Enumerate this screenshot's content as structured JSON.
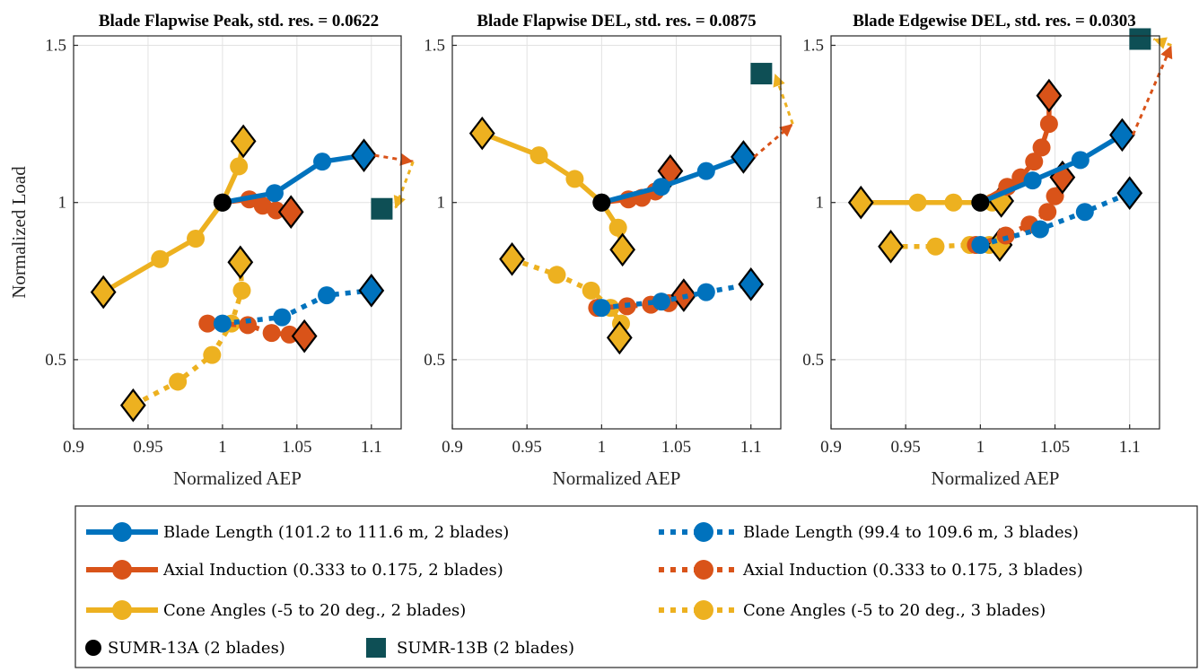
{
  "chart_data": [
    {
      "type": "line",
      "title": "Blade Flapwise Peak, std. res. = 0.0622",
      "xlabel": "Normalized AEP",
      "ylabel": "Normalized Load",
      "xlim": [
        0.9,
        1.12
      ],
      "ylim": [
        0.28,
        1.53
      ],
      "xticks": [
        "0.9",
        "0.95",
        "1",
        "1.05",
        "1.1"
      ],
      "yticks": [
        "0.5",
        "1",
        "1.5"
      ],
      "grid": true,
      "series": [
        {
          "key": "bl2",
          "points": [
            [
              1.0,
              1.0
            ],
            [
              1.035,
              1.03
            ],
            [
              1.067,
              1.13
            ],
            [
              1.095,
              1.15
            ]
          ]
        },
        {
          "key": "ai2",
          "points": [
            [
              1.0,
              1.0
            ],
            [
              1.018,
              1.01
            ],
            [
              1.027,
              0.99
            ],
            [
              1.036,
              0.975
            ],
            [
              1.046,
              0.97
            ]
          ]
        },
        {
          "key": "cone2",
          "points": [
            [
              0.92,
              0.715
            ],
            [
              0.958,
              0.82
            ],
            [
              0.982,
              0.885
            ],
            [
              1.0,
              1.0
            ],
            [
              1.011,
              1.115
            ],
            [
              1.014,
              1.195
            ]
          ]
        },
        {
          "key": "bl3",
          "points": [
            [
              1.0,
              0.615
            ],
            [
              1.04,
              0.635
            ],
            [
              1.07,
              0.705
            ],
            [
              1.1,
              0.72
            ]
          ]
        },
        {
          "key": "ai3",
          "points": [
            [
              0.99,
              0.615
            ],
            [
              1.017,
              0.61
            ],
            [
              1.033,
              0.585
            ],
            [
              1.045,
              0.58
            ],
            [
              1.055,
              0.575
            ]
          ]
        },
        {
          "key": "cone3",
          "points": [
            [
              0.94,
              0.355
            ],
            [
              0.97,
              0.43
            ],
            [
              0.993,
              0.515
            ],
            [
              1.006,
              0.615
            ],
            [
              1.013,
              0.72
            ],
            [
              1.012,
              0.81
            ]
          ]
        }
      ],
      "sumr13a": [
        1.0,
        1.0
      ],
      "sumr13b": [
        1.107,
        0.98
      ],
      "arrow_ends": [
        [
          1.128,
          1.13
        ],
        [
          1.11,
          0.98
        ]
      ]
    },
    {
      "type": "line",
      "title": "Blade Flapwise DEL, std. res. = 0.0875",
      "xlabel": "Normalized AEP",
      "ylabel": "",
      "xlim": [
        0.9,
        1.12
      ],
      "ylim": [
        0.28,
        1.53
      ],
      "xticks": [
        "0.9",
        "0.95",
        "1",
        "1.05",
        "1.1"
      ],
      "yticks": [
        "0.5",
        "1",
        "1.5"
      ],
      "grid": true,
      "series": [
        {
          "key": "bl2",
          "points": [
            [
              1.0,
              1.0
            ],
            [
              1.04,
              1.05
            ],
            [
              1.07,
              1.1
            ],
            [
              1.095,
              1.145
            ]
          ]
        },
        {
          "key": "ai2",
          "points": [
            [
              1.0,
              1.0
            ],
            [
              1.018,
              1.01
            ],
            [
              1.027,
              1.015
            ],
            [
              1.036,
              1.035
            ],
            [
              1.046,
              1.1
            ]
          ]
        },
        {
          "key": "cone2",
          "points": [
            [
              0.92,
              1.22
            ],
            [
              0.958,
              1.15
            ],
            [
              0.982,
              1.075
            ],
            [
              1.0,
              1.0
            ],
            [
              1.011,
              0.92
            ],
            [
              1.014,
              0.85
            ]
          ]
        },
        {
          "key": "bl3",
          "points": [
            [
              1.0,
              0.665
            ],
            [
              1.04,
              0.685
            ],
            [
              1.07,
              0.715
            ],
            [
              1.1,
              0.74
            ]
          ]
        },
        {
          "key": "ai3",
          "points": [
            [
              0.997,
              0.665
            ],
            [
              1.017,
              0.67
            ],
            [
              1.033,
              0.675
            ],
            [
              1.045,
              0.68
            ],
            [
              1.055,
              0.705
            ]
          ]
        },
        {
          "key": "cone3",
          "points": [
            [
              0.94,
              0.82
            ],
            [
              0.97,
              0.77
            ],
            [
              0.993,
              0.72
            ],
            [
              1.006,
              0.665
            ],
            [
              1.013,
              0.615
            ],
            [
              1.012,
              0.57
            ]
          ]
        }
      ],
      "sumr13a": [
        1.0,
        1.0
      ],
      "sumr13b": [
        1.107,
        1.41
      ],
      "arrow_ends": [
        [
          1.128,
          1.25
        ],
        [
          1.11,
          1.41
        ]
      ]
    },
    {
      "type": "line",
      "title": "Blade Edgewise DEL, std. res. = 0.0303",
      "xlabel": "Normalized AEP",
      "ylabel": "",
      "xlim": [
        0.9,
        1.12
      ],
      "ylim": [
        0.28,
        1.53
      ],
      "xticks": [
        "0.9",
        "0.95",
        "1",
        "1.05",
        "1.1"
      ],
      "yticks": [
        "0.5",
        "1",
        "1.5"
      ],
      "grid": true,
      "series": [
        {
          "key": "bl2",
          "points": [
            [
              1.0,
              1.0
            ],
            [
              1.035,
              1.07
            ],
            [
              1.067,
              1.135
            ],
            [
              1.095,
              1.215
            ]
          ]
        },
        {
          "key": "ai2",
          "points": [
            [
              1.0,
              1.0
            ],
            [
              1.018,
              1.05
            ],
            [
              1.027,
              1.08
            ],
            [
              1.036,
              1.13
            ],
            [
              1.041,
              1.175
            ],
            [
              1.046,
              1.25
            ],
            [
              1.046,
              1.34
            ]
          ]
        },
        {
          "key": "cone2",
          "points": [
            [
              0.92,
              1.0
            ],
            [
              0.958,
              1.0
            ],
            [
              0.982,
              1.0
            ],
            [
              1.0,
              1.0
            ],
            [
              1.008,
              1.0
            ],
            [
              1.014,
              1.005
            ]
          ]
        },
        {
          "key": "bl3",
          "points": [
            [
              1.0,
              0.865
            ],
            [
              1.04,
              0.915
            ],
            [
              1.07,
              0.97
            ],
            [
              1.1,
              1.03
            ]
          ]
        },
        {
          "key": "ai3",
          "points": [
            [
              0.997,
              0.865
            ],
            [
              1.017,
              0.895
            ],
            [
              1.033,
              0.93
            ],
            [
              1.045,
              0.97
            ],
            [
              1.05,
              1.02
            ],
            [
              1.055,
              1.08
            ]
          ]
        },
        {
          "key": "cone3",
          "points": [
            [
              0.94,
              0.86
            ],
            [
              0.97,
              0.86
            ],
            [
              0.993,
              0.865
            ],
            [
              1.006,
              0.865
            ],
            [
              1.013,
              0.865
            ]
          ]
        }
      ],
      "sumr13a": [
        1.0,
        1.0
      ],
      "sumr13b": [
        1.107,
        1.52
      ],
      "arrow_ends": [
        [
          1.128,
          1.5
        ],
        [
          1.11,
          1.52
        ]
      ]
    }
  ],
  "legend": {
    "bl2": "Blade Length (101.2 to 111.6 m, 2 blades)",
    "bl3": "Blade Length (99.4 to 109.6 m, 3 blades)",
    "ai2": "Axial Induction (0.333 to 0.175, 2 blades)",
    "ai3": "Axial Induction (0.333 to 0.175, 3 blades)",
    "cone2": "Cone Angles (-5 to 20 deg., 2 blades)",
    "cone3": "Cone Angles (-5 to 20 deg., 3 blades)",
    "sumr13a": "SUMR-13A (2 blades)",
    "sumr13b": "SUMR-13B (2 blades)"
  },
  "colors": {
    "blue": "#0072bd",
    "orange": "#d95319",
    "yellow": "#edb120",
    "teal": "#0e4f55",
    "black": "#000000"
  }
}
